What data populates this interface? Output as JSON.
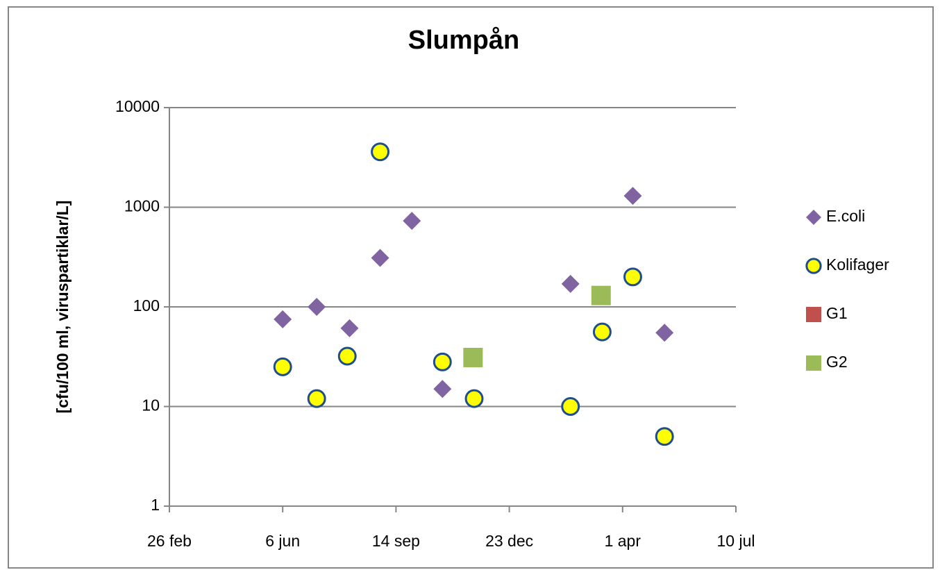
{
  "chart_data": {
    "type": "scatter",
    "title": "Slumpån",
    "y_label": "[cfu/100 ml, viruspartiklar/L]",
    "yscale": "log",
    "xlim": [
      0,
      500
    ],
    "xticks": [
      {
        "value": 0,
        "label": "26 feb"
      },
      {
        "value": 100,
        "label": "6 jun"
      },
      {
        "value": 200,
        "label": "14 sep"
      },
      {
        "value": 300,
        "label": "23 dec"
      },
      {
        "value": 400,
        "label": "1 apr"
      },
      {
        "value": 500,
        "label": "10 jul"
      }
    ],
    "ylim": [
      1,
      10000
    ],
    "yticks": [
      1,
      10,
      100,
      1000,
      10000
    ],
    "grid": true,
    "legend": "right",
    "series": [
      {
        "name": "E.coli",
        "color": "#8064a2",
        "marker": "diamond",
        "x": [
          100,
          130,
          159,
          186,
          214,
          241,
          354,
          409,
          437
        ],
        "values": [
          75,
          100,
          61,
          310,
          730,
          15,
          170,
          1300,
          55
        ]
      },
      {
        "name": "Kolifager",
        "color": "#ffff00",
        "marker": "circle",
        "x": [
          100,
          130,
          157,
          186,
          241,
          269,
          354,
          382,
          409,
          437
        ],
        "values": [
          25,
          12,
          32,
          3600,
          28,
          12,
          10,
          56,
          200,
          5
        ]
      },
      {
        "name": "G1",
        "color": "#c0504d",
        "marker": "square",
        "x": [],
        "values": []
      },
      {
        "name": "G2",
        "color": "#9bbb59",
        "marker": "square",
        "x": [
          268,
          381
        ],
        "values": [
          31,
          130
        ]
      }
    ]
  }
}
